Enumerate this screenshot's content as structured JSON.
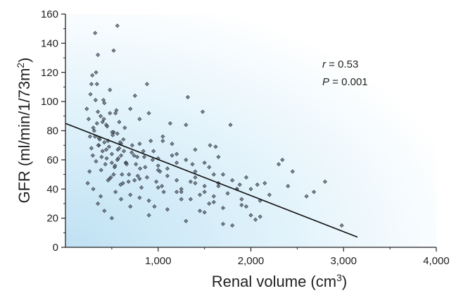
{
  "chart_data": {
    "type": "scatter",
    "title": "",
    "xlabel": "Renal volume (cm",
    "xlabel_sup": "3",
    "xlabel_close": ")",
    "ylabel": "GFR (ml/min/1/73m",
    "ylabel_sup": "2",
    "ylabel_close": ")",
    "xlim": [
      0,
      4000
    ],
    "ylim": [
      0,
      160
    ],
    "x_ticks": [
      1000,
      2000,
      3000,
      4000
    ],
    "x_tick_labels": [
      "1,000",
      "2,000",
      "3,000",
      "4,000"
    ],
    "y_ticks": [
      0,
      20,
      40,
      60,
      80,
      100,
      120,
      140,
      160
    ],
    "y_tick_labels": [
      "0",
      "20",
      "40",
      "60",
      "80",
      "100",
      "120",
      "140",
      "160"
    ],
    "grid": false,
    "background": "light-blue gradient (top-left)",
    "annotations": [
      {
        "var": "r",
        "text": " = 0.53"
      },
      {
        "var": "P",
        "text": " = 0.001"
      }
    ],
    "regression_line": {
      "x": [
        0,
        3150
      ],
      "y": [
        85,
        7
      ]
    },
    "marker_color": "#5a6470",
    "line_color": "#111111",
    "series": [
      {
        "x": [
          230,
          250,
          270,
          290,
          300,
          320,
          340,
          360,
          380,
          400,
          420,
          440,
          460,
          480,
          500,
          520,
          540,
          560,
          580,
          600,
          260,
          280,
          310,
          330,
          350,
          370,
          390,
          410,
          430,
          450,
          470,
          490,
          510,
          530,
          550,
          570,
          590,
          610,
          630,
          650,
          240,
          265,
          295,
          325,
          355,
          385,
          415,
          445,
          475,
          505,
          535,
          565,
          595,
          625,
          655,
          685,
          715,
          745,
          775,
          805,
          300,
          340,
          380,
          420,
          460,
          500,
          540,
          580,
          620,
          660,
          700,
          740,
          780,
          820,
          860,
          900,
          940,
          980,
          1020,
          1060,
          280,
          330,
          360,
          400,
          440,
          480,
          520,
          560,
          600,
          640,
          680,
          720,
          760,
          800,
          840,
          880,
          920,
          960,
          1000,
          1040,
          350,
          420,
          500,
          600,
          700,
          800,
          900,
          1000,
          1100,
          1200,
          1300,
          1400,
          1500,
          1600,
          1700,
          1800,
          1900,
          2000,
          2100,
          2200,
          700,
          750,
          800,
          850,
          900,
          950,
          1000,
          1050,
          1100,
          1150,
          1200,
          1250,
          1300,
          1350,
          1400,
          1450,
          1500,
          1550,
          1600,
          1650,
          1100,
          1150,
          1200,
          1250,
          1300,
          1350,
          1400,
          1450,
          1500,
          1550,
          1600,
          1650,
          1700,
          1750,
          1800,
          1850,
          1900,
          1950,
          2000,
          2050,
          320,
          560,
          1050,
          1320,
          1480,
          1560,
          1780,
          2070,
          2340,
          2680,
          2980,
          2800,
          2600,
          2450,
          2300,
          2150,
          1950,
          1700,
          1500,
          1250,
          350,
          520,
          800,
          1000,
          1200,
          1400,
          1650,
          1850,
          2100,
          2400,
          880,
          1130,
          1370,
          1620,
          1880
        ],
        "y": [
          95,
          88,
          105,
          118,
          82,
          76,
          112,
          70,
          90,
          66,
          99,
          84,
          73,
          108,
          64,
          79,
          92,
          60,
          86,
          71,
          52,
          68,
          80,
          59,
          93,
          74,
          62,
          101,
          57,
          83,
          69,
          48,
          77,
          55,
          94,
          61,
          72,
          50,
          66,
          58,
          44,
          76,
          63,
          101,
          70,
          53,
          88,
          61,
          47,
          79,
          56,
          67,
          43,
          74,
          58,
          50,
          65,
          46,
          62,
          54,
          40,
          85,
          35,
          72,
          46,
          58,
          38,
          68,
          44,
          57,
          36,
          63,
          49,
          41,
          55,
          32,
          60,
          45,
          52,
          38,
          112,
          120,
          75,
          86,
          67,
          92,
          50,
          78,
          63,
          82,
          45,
          70,
          57,
          34,
          66,
          48,
          73,
          28,
          61,
          42,
          30,
          25,
          20,
          33,
          28,
          47,
          22,
          41,
          26,
          38,
          18,
          52,
          24,
          35,
          16,
          46,
          29,
          40,
          21,
          36,
          95,
          104,
          88,
          62,
          92,
          66,
          53,
          76,
          49,
          71,
          58,
          40,
          84,
          45,
          67,
          36,
          58,
          30,
          50,
          42,
          54,
          63,
          46,
          38,
          60,
          33,
          48,
          25,
          42,
          55,
          31,
          44,
          27,
          37,
          15,
          40,
          33,
          28,
          22,
          19,
          147,
          152,
          73,
          103,
          93,
          70,
          84,
          43,
          60,
          38,
          15,
          45,
          35,
          52,
          57,
          44,
          48,
          50,
          38,
          33,
          132,
          135,
          71,
          56,
          64,
          44,
          62,
          40,
          32,
          42,
          112,
          85,
          57,
          69,
          43
        ]
      }
    ]
  }
}
